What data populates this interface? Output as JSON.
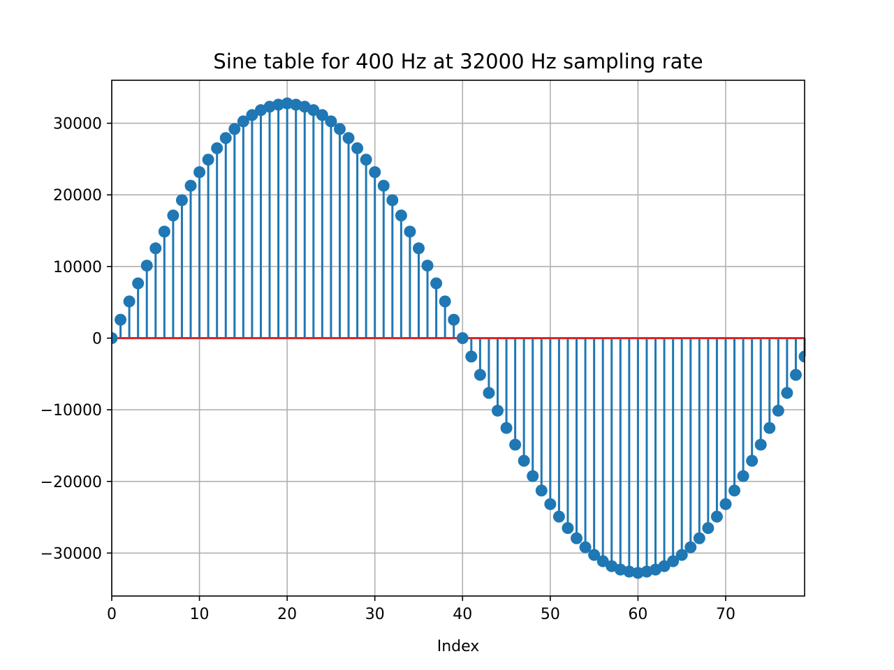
{
  "chart_data": {
    "type": "stem",
    "title": "Sine table for 400 Hz at 32000 Hz sampling rate",
    "xlabel": "Index",
    "ylabel": "",
    "xlim": [
      0,
      79
    ],
    "ylim": [
      -36000,
      36000
    ],
    "xticks": [
      0,
      10,
      20,
      30,
      40,
      50,
      60,
      70
    ],
    "xtick_labels": [
      "0",
      "10",
      "20",
      "30",
      "40",
      "50",
      "60",
      "70"
    ],
    "yticks": [
      -30000,
      -20000,
      -10000,
      0,
      10000,
      20000,
      30000
    ],
    "ytick_labels": [
      "−30000",
      "−20000",
      "−10000",
      "0",
      "10000",
      "20000",
      "30000"
    ],
    "grid": true,
    "baseline": 0,
    "colors": {
      "stem": "#1f77b4",
      "baseline": "#d62728"
    },
    "x": [
      0,
      1,
      2,
      3,
      4,
      5,
      6,
      7,
      8,
      9,
      10,
      11,
      12,
      13,
      14,
      15,
      16,
      17,
      18,
      19,
      20,
      21,
      22,
      23,
      24,
      25,
      26,
      27,
      28,
      29,
      30,
      31,
      32,
      33,
      34,
      35,
      36,
      37,
      38,
      39,
      40,
      41,
      42,
      43,
      44,
      45,
      46,
      47,
      48,
      49,
      50,
      51,
      52,
      53,
      54,
      55,
      56,
      57,
      58,
      59,
      60,
      61,
      62,
      63,
      64,
      65,
      66,
      67,
      68,
      69,
      70,
      71,
      72,
      73,
      74,
      75,
      76,
      77,
      78,
      79
    ],
    "values": [
      0,
      2570,
      5126,
      7649,
      10126,
      12539,
      14876,
      17121,
      19260,
      21279,
      23170,
      24917,
      26510,
      27938,
      29191,
      30264,
      31142,
      31829,
      32309,
      32588,
      32767,
      32588,
      32309,
      31829,
      31142,
      30264,
      29191,
      27938,
      26510,
      24917,
      23170,
      21279,
      19260,
      17121,
      14876,
      12539,
      10126,
      7649,
      5126,
      2570,
      0,
      -2570,
      -5126,
      -7649,
      -10126,
      -12539,
      -14876,
      -17121,
      -19260,
      -21279,
      -23170,
      -24917,
      -26510,
      -27938,
      -29191,
      -30264,
      -31142,
      -31829,
      -32309,
      -32588,
      -32767,
      -32588,
      -32309,
      -31829,
      -31142,
      -30264,
      -29191,
      -27938,
      -26510,
      -24917,
      -23170,
      -21279,
      -19260,
      -17121,
      -14876,
      -12539,
      -10126,
      -7649,
      -5126,
      -2570
    ]
  }
}
